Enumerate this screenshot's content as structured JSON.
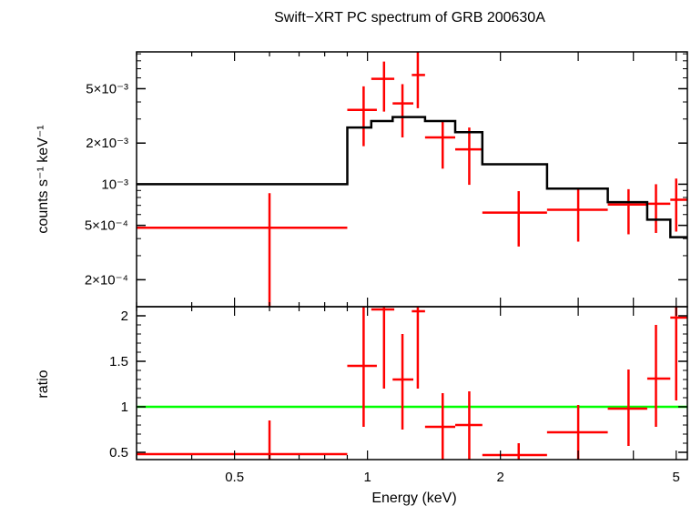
{
  "chart_data": {
    "type": "scatter",
    "title": "Swift−XRT PC spectrum of GRB 200630A",
    "xlabel": "Energy (keV)",
    "x_scale": "log",
    "xlim": [
      0.3,
      5.3
    ],
    "x_ticks": [
      {
        "value": 0.5,
        "label": "0.5"
      },
      {
        "value": 1,
        "label": "1"
      },
      {
        "value": 2,
        "label": "2"
      },
      {
        "value": 5,
        "label": "5"
      }
    ],
    "panels": [
      {
        "id": "spectrum",
        "ylabel": "counts s⁻¹ keV⁻¹",
        "y_scale": "log",
        "ylim": [
          0.000127,
          0.0093
        ],
        "y_ticks": [
          {
            "value": 0.0002,
            "label": "2×10⁻⁴"
          },
          {
            "value": 0.0005,
            "label": "5×10⁻⁴"
          },
          {
            "value": 0.001,
            "label": "10⁻³"
          },
          {
            "value": 0.002,
            "label": "2×10⁻³"
          },
          {
            "value": 0.005,
            "label": "5×10⁻³"
          }
        ],
        "series": [
          {
            "kind": "errorbars",
            "color": "#ff0000",
            "points": [
              {
                "x": 0.6,
                "xlo": 0.3,
                "xhi": 0.9,
                "y": 0.00048,
                "ylo": 0.000127,
                "yhi": 0.00086
              },
              {
                "x": 0.98,
                "xlo": 0.9,
                "xhi": 1.05,
                "y": 0.0035,
                "ylo": 0.0019,
                "yhi": 0.0052
              },
              {
                "x": 1.09,
                "xlo": 1.02,
                "xhi": 1.15,
                "y": 0.0059,
                "ylo": 0.0034,
                "yhi": 0.0079
              },
              {
                "x": 1.2,
                "xlo": 1.14,
                "xhi": 1.27,
                "y": 0.0039,
                "ylo": 0.0022,
                "yhi": 0.0054
              },
              {
                "x": 1.3,
                "xlo": 1.26,
                "xhi": 1.35,
                "y": 0.0063,
                "ylo": 0.0036,
                "yhi": 0.0093
              },
              {
                "x": 1.48,
                "xlo": 1.35,
                "xhi": 1.58,
                "y": 0.0022,
                "ylo": 0.0013,
                "yhi": 0.0029
              },
              {
                "x": 1.7,
                "xlo": 1.58,
                "xhi": 1.82,
                "y": 0.0018,
                "ylo": 0.00099,
                "yhi": 0.0026
              },
              {
                "x": 2.2,
                "xlo": 1.82,
                "xhi": 2.55,
                "y": 0.00062,
                "ylo": 0.00035,
                "yhi": 0.00089
              },
              {
                "x": 3.0,
                "xlo": 2.55,
                "xhi": 3.5,
                "y": 0.00065,
                "ylo": 0.00038,
                "yhi": 0.00092
              },
              {
                "x": 3.9,
                "xlo": 3.5,
                "xhi": 4.3,
                "y": 0.00071,
                "ylo": 0.00043,
                "yhi": 0.00092
              },
              {
                "x": 4.5,
                "xlo": 4.3,
                "xhi": 4.85,
                "y": 0.00072,
                "ylo": 0.00044,
                "yhi": 0.001
              },
              {
                "x": 5.0,
                "xlo": 4.85,
                "xhi": 5.3,
                "y": 0.00077,
                "ylo": 0.00045,
                "yhi": 0.0011
              }
            ]
          },
          {
            "kind": "step",
            "color": "#000000",
            "bins": [
              {
                "x0": 0.3,
                "x1": 0.9,
                "y": 0.001
              },
              {
                "x0": 0.9,
                "x1": 1.02,
                "y": 0.0026
              },
              {
                "x0": 1.02,
                "x1": 1.14,
                "y": 0.0029
              },
              {
                "x0": 1.14,
                "x1": 1.26,
                "y": 0.0031
              },
              {
                "x0": 1.26,
                "x1": 1.35,
                "y": 0.0031
              },
              {
                "x0": 1.35,
                "x1": 1.58,
                "y": 0.0029
              },
              {
                "x0": 1.58,
                "x1": 1.82,
                "y": 0.0024
              },
              {
                "x0": 1.82,
                "x1": 2.55,
                "y": 0.0014
              },
              {
                "x0": 2.55,
                "x1": 3.5,
                "y": 0.00093
              },
              {
                "x0": 3.5,
                "x1": 4.3,
                "y": 0.00074
              },
              {
                "x0": 4.3,
                "x1": 4.85,
                "y": 0.00055
              },
              {
                "x0": 4.85,
                "x1": 5.3,
                "y": 0.00041
              }
            ]
          }
        ]
      },
      {
        "id": "ratio",
        "ylabel": "ratio",
        "y_scale": "linear",
        "ylim": [
          0.42,
          2.1
        ],
        "y_ticks": [
          {
            "value": 0.5,
            "label": "0.5"
          },
          {
            "value": 1,
            "label": "1"
          },
          {
            "value": 1.5,
            "label": "1.5"
          },
          {
            "value": 2,
            "label": "2"
          }
        ],
        "reference_line": {
          "y": 1,
          "color": "#00ff00"
        },
        "series": [
          {
            "kind": "errorbars",
            "color": "#ff0000",
            "points": [
              {
                "x": 0.6,
                "xlo": 0.3,
                "xhi": 0.9,
                "y": 0.48,
                "ylo": 0.42,
                "yhi": 0.85
              },
              {
                "x": 0.98,
                "xlo": 0.9,
                "xhi": 1.05,
                "y": 1.45,
                "ylo": 0.78,
                "yhi": 2.1
              },
              {
                "x": 1.09,
                "xlo": 1.02,
                "xhi": 1.15,
                "y": 2.07,
                "ylo": 1.2,
                "yhi": 2.1
              },
              {
                "x": 1.2,
                "xlo": 1.14,
                "xhi": 1.27,
                "y": 1.3,
                "ylo": 0.75,
                "yhi": 1.8
              },
              {
                "x": 1.3,
                "xlo": 1.26,
                "xhi": 1.35,
                "y": 2.05,
                "ylo": 1.2,
                "yhi": 2.1
              },
              {
                "x": 1.48,
                "xlo": 1.35,
                "xhi": 1.58,
                "y": 0.78,
                "ylo": 0.42,
                "yhi": 1.15
              },
              {
                "x": 1.7,
                "xlo": 1.58,
                "xhi": 1.82,
                "y": 0.8,
                "ylo": 0.42,
                "yhi": 1.17
              },
              {
                "x": 2.2,
                "xlo": 1.82,
                "xhi": 2.55,
                "y": 0.47,
                "ylo": 0.42,
                "yhi": 0.6
              },
              {
                "x": 3.0,
                "xlo": 2.55,
                "xhi": 3.5,
                "y": 0.72,
                "ylo": 0.42,
                "yhi": 1.02
              },
              {
                "x": 3.9,
                "xlo": 3.5,
                "xhi": 4.3,
                "y": 0.98,
                "ylo": 0.57,
                "yhi": 1.41
              },
              {
                "x": 4.5,
                "xlo": 4.3,
                "xhi": 4.85,
                "y": 1.31,
                "ylo": 0.78,
                "yhi": 1.9
              },
              {
                "x": 5.0,
                "xlo": 4.85,
                "xhi": 5.3,
                "y": 1.98,
                "ylo": 1.07,
                "yhi": 2.1
              }
            ]
          }
        ]
      }
    ]
  }
}
